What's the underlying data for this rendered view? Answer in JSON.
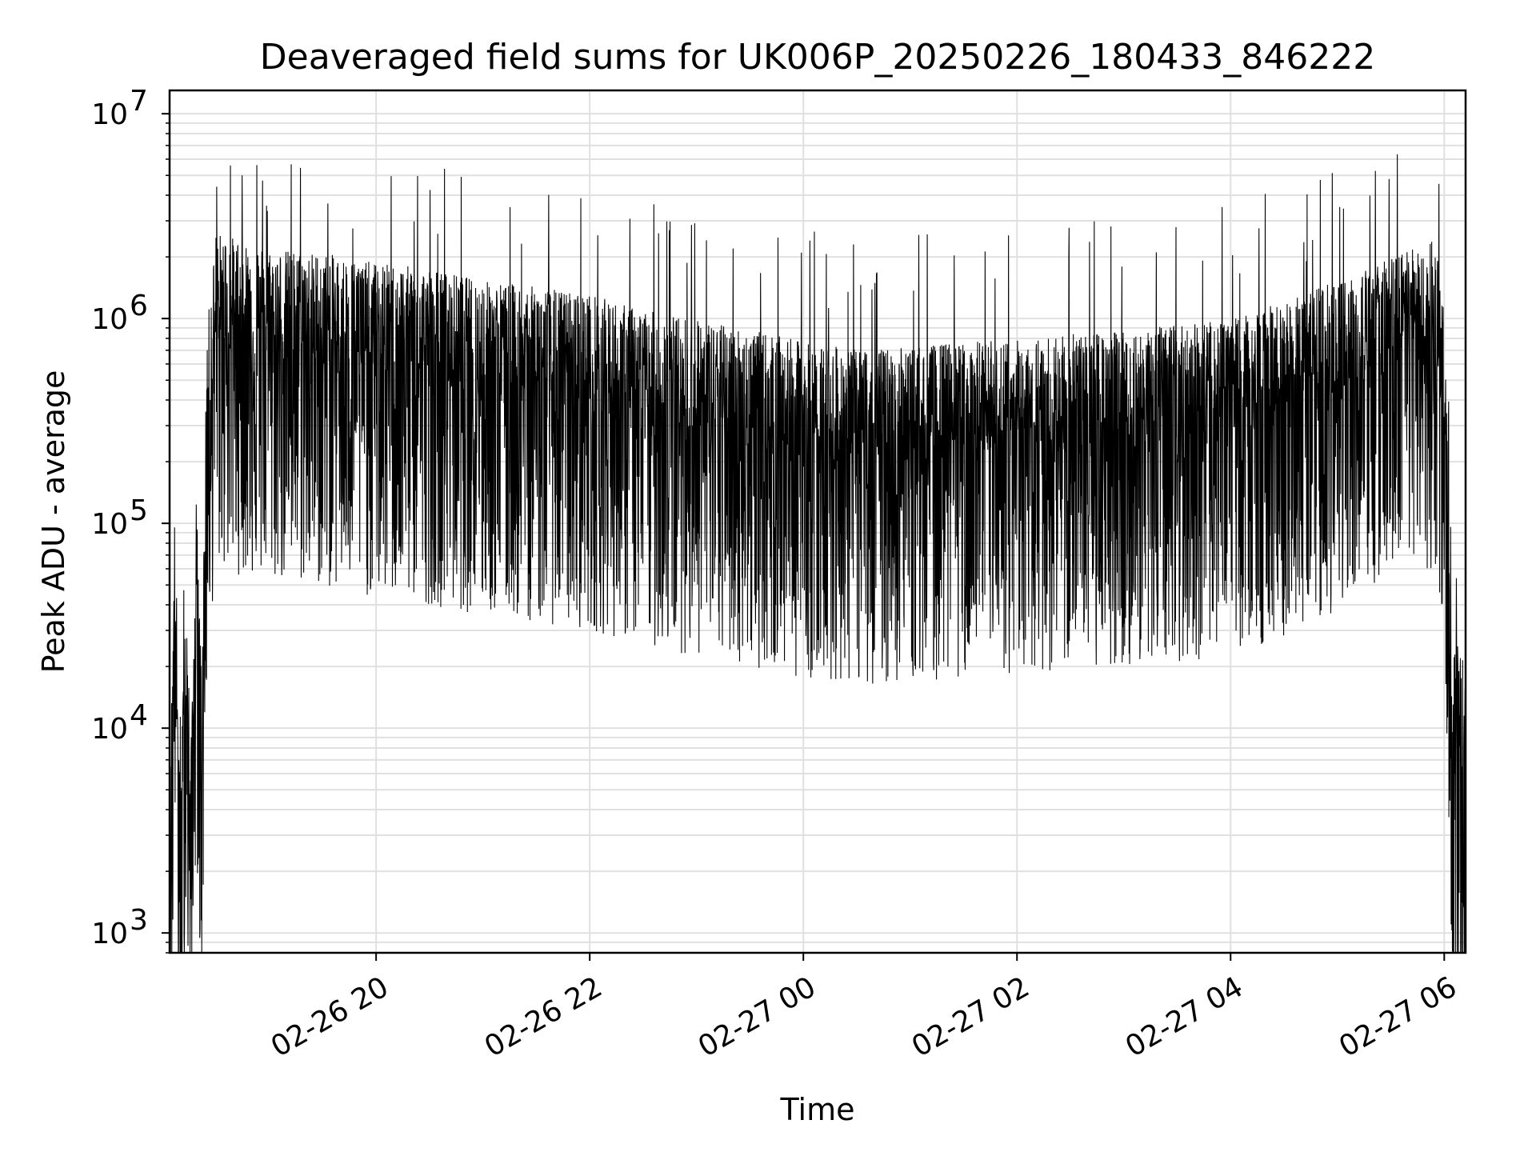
{
  "chart_data": {
    "type": "line",
    "title": "Deaveraged field sums for UK006P_20250226_180433_846222",
    "xlabel": "Time",
    "ylabel": "Peak ADU - average",
    "yscale": "log",
    "ylim": [
      800,
      13000000
    ],
    "xlim": [
      "2025-02-26 18:04",
      "2025-02-27 06:12"
    ],
    "grid": true,
    "line_color": "#000000",
    "grid_color": "#e0e0e0",
    "x_ticks": [
      {
        "value": "2025-02-26 20:00",
        "label": "02-26 20"
      },
      {
        "value": "2025-02-26 22:00",
        "label": "02-26 22"
      },
      {
        "value": "2025-02-27 00:00",
        "label": "02-27 00"
      },
      {
        "value": "2025-02-27 02:00",
        "label": "02-27 02"
      },
      {
        "value": "2025-02-27 04:00",
        "label": "02-27 04"
      },
      {
        "value": "2025-02-27 06:00",
        "label": "02-27 06"
      }
    ],
    "y_ticks": [
      {
        "value": 1000,
        "base": "10",
        "exp": "3"
      },
      {
        "value": 10000,
        "base": "10",
        "exp": "4"
      },
      {
        "value": 100000,
        "base": "10",
        "exp": "5"
      },
      {
        "value": 1000000,
        "base": "10",
        "exp": "6"
      },
      {
        "value": 10000000,
        "base": "10",
        "exp": "7"
      }
    ],
    "series": [
      {
        "values": [
          {
            "x": "2025-02-26 18:04",
            "y": 2000
          },
          {
            "x": "2025-02-26 18:07",
            "y": 60000
          },
          {
            "x": "2025-02-26 18:10",
            "y": 1800
          },
          {
            "x": "2025-02-26 18:13",
            "y": 25000
          },
          {
            "x": "2025-02-26 18:16",
            "y": 3500
          },
          {
            "x": "2025-02-26 18:19",
            "y": 60000
          },
          {
            "x": "2025-02-26 18:22",
            "y": 8000
          },
          {
            "x": "2025-02-26 18:25",
            "y": 400000
          },
          {
            "x": "2025-02-26 18:30",
            "y": 1200000
          },
          {
            "x": "2025-02-26 18:45",
            "y": 1100000
          },
          {
            "x": "2025-02-26 19:00",
            "y": 1000000
          },
          {
            "x": "2025-02-26 19:30",
            "y": 950000
          },
          {
            "x": "2025-02-26 20:00",
            "y": 850000
          },
          {
            "x": "2025-02-26 20:30",
            "y": 800000
          },
          {
            "x": "2025-02-26 21:00",
            "y": 700000
          },
          {
            "x": "2025-02-26 21:30",
            "y": 650000
          },
          {
            "x": "2025-02-26 22:00",
            "y": 600000
          },
          {
            "x": "2025-02-26 22:30",
            "y": 500000
          },
          {
            "x": "2025-02-26 23:00",
            "y": 450000
          },
          {
            "x": "2025-02-26 23:30",
            "y": 400000
          },
          {
            "x": "2025-02-27 00:00",
            "y": 350000
          },
          {
            "x": "2025-02-27 00:30",
            "y": 320000
          },
          {
            "x": "2025-02-27 01:00",
            "y": 330000
          },
          {
            "x": "2025-02-27 01:30",
            "y": 350000
          },
          {
            "x": "2025-02-27 02:00",
            "y": 360000
          },
          {
            "x": "2025-02-27 02:30",
            "y": 380000
          },
          {
            "x": "2025-02-27 03:00",
            "y": 400000
          },
          {
            "x": "2025-02-27 03:30",
            "y": 420000
          },
          {
            "x": "2025-02-27 04:00",
            "y": 450000
          },
          {
            "x": "2025-02-27 04:30",
            "y": 550000
          },
          {
            "x": "2025-02-27 05:00",
            "y": 700000
          },
          {
            "x": "2025-02-27 05:30",
            "y": 900000
          },
          {
            "x": "2025-02-27 05:55",
            "y": 1100000
          },
          {
            "x": "2025-02-27 06:00",
            "y": 500000
          },
          {
            "x": "2025-02-27 06:02",
            "y": 100000
          },
          {
            "x": "2025-02-27 06:04",
            "y": 10000
          },
          {
            "x": "2025-02-27 06:08",
            "y": 12000
          },
          {
            "x": "2025-02-27 06:12",
            "y": 9000
          }
        ]
      }
    ]
  }
}
